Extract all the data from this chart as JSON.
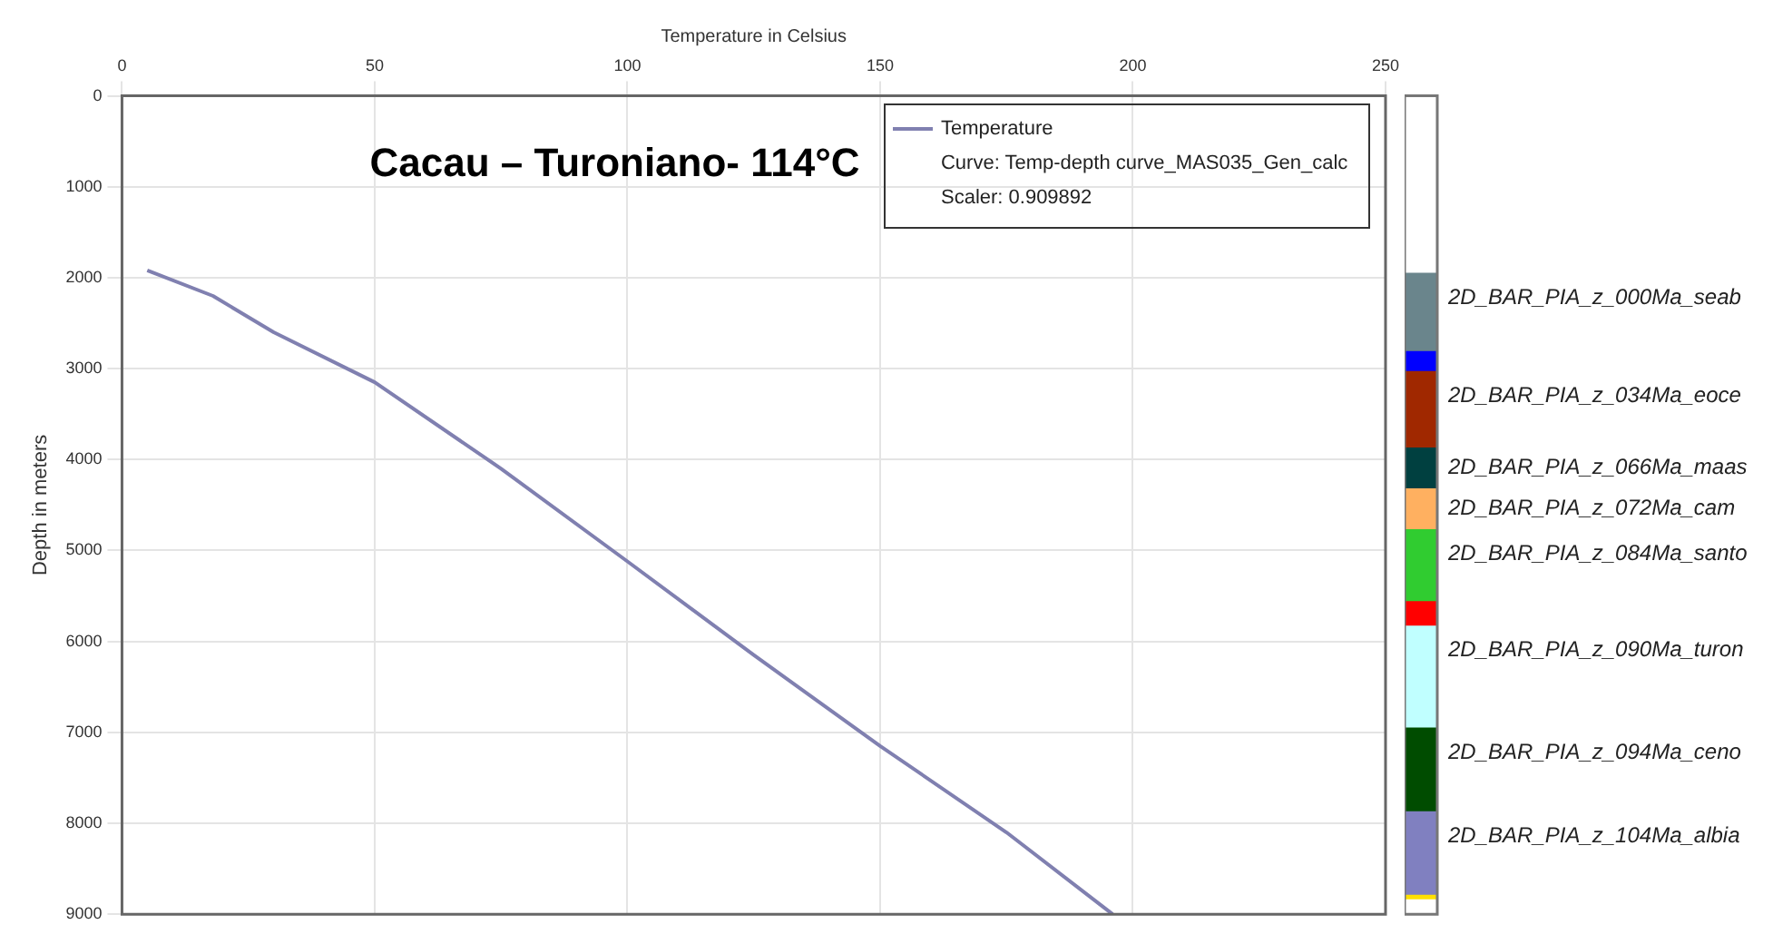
{
  "chart_data": [
    {
      "type": "line",
      "title": "Cacau – Turoniano- 114°C",
      "xlabel": "Temperature in Celsius",
      "ylabel": "Depth in meters",
      "series": [
        {
          "name": "Temperature",
          "color": "#8080b0",
          "x": [
            5,
            18,
            30,
            50,
            75,
            100,
            125,
            150,
            175,
            196
          ],
          "values": [
            1920,
            2200,
            2600,
            3150,
            4100,
            5120,
            6150,
            7150,
            8100,
            9000
          ]
        }
      ],
      "xlim": [
        0,
        250
      ],
      "xticks": [
        0,
        50,
        100,
        150,
        200,
        250
      ],
      "ylim": [
        9000,
        0
      ],
      "yticks": [
        0,
        1000,
        2000,
        3000,
        4000,
        5000,
        6000,
        7000,
        8000,
        9000
      ],
      "grid": true,
      "legend": "top right",
      "marker": "none",
      "line_style": "solid",
      "annotations": [
        "Curve: Temp-depth curve_MAS035_Gen_calc",
        "Scaler: 0.909892"
      ]
    },
    {
      "type": "bar",
      "categories": [
        null
      ],
      "stacked": true,
      "ylim": [
        9000,
        0
      ],
      "yticks": [
        0,
        1000,
        2000,
        3000,
        4000,
        5000,
        6000,
        7000,
        8000,
        9000
      ],
      "tick_labels": false,
      "series": [
        {
          "color": "#ffffff",
          "values": [
            1940
          ]
        },
        {
          "name": "2D_BAR_PIA_z_000Ma_seab",
          "color": "#6a858c",
          "values": [
            860
          ]
        },
        {
          "color": "#0000ff",
          "values": [
            220
          ]
        },
        {
          "name": "2D_BAR_PIA_z_034Ma_eoce",
          "color": "#a02800",
          "values": [
            840
          ]
        },
        {
          "name": "2D_BAR_PIA_z_066Ma_maas",
          "color": "#004040",
          "values": [
            450
          ]
        },
        {
          "name": "2D_BAR_PIA_z_072Ma_cam",
          "color": "#ffb060",
          "values": [
            450
          ]
        },
        {
          "name": "2D_BAR_PIA_z_084Ma_santo",
          "color": "#30cc30",
          "values": [
            790
          ]
        },
        {
          "color": "#ff0000",
          "values": [
            270
          ]
        },
        {
          "name": "2D_BAR_PIA_z_090Ma_turon",
          "color": "#c0ffff",
          "values": [
            1120
          ]
        },
        {
          "name": "2D_BAR_PIA_z_094Ma_ceno",
          "color": "#004c00",
          "values": [
            920
          ]
        },
        {
          "name": "2D_BAR_PIA_z_104Ma_albia",
          "color": "#8080c0",
          "values": [
            920
          ]
        },
        {
          "color": "#ffe000",
          "values": [
            50
          ]
        }
      ]
    }
  ]
}
